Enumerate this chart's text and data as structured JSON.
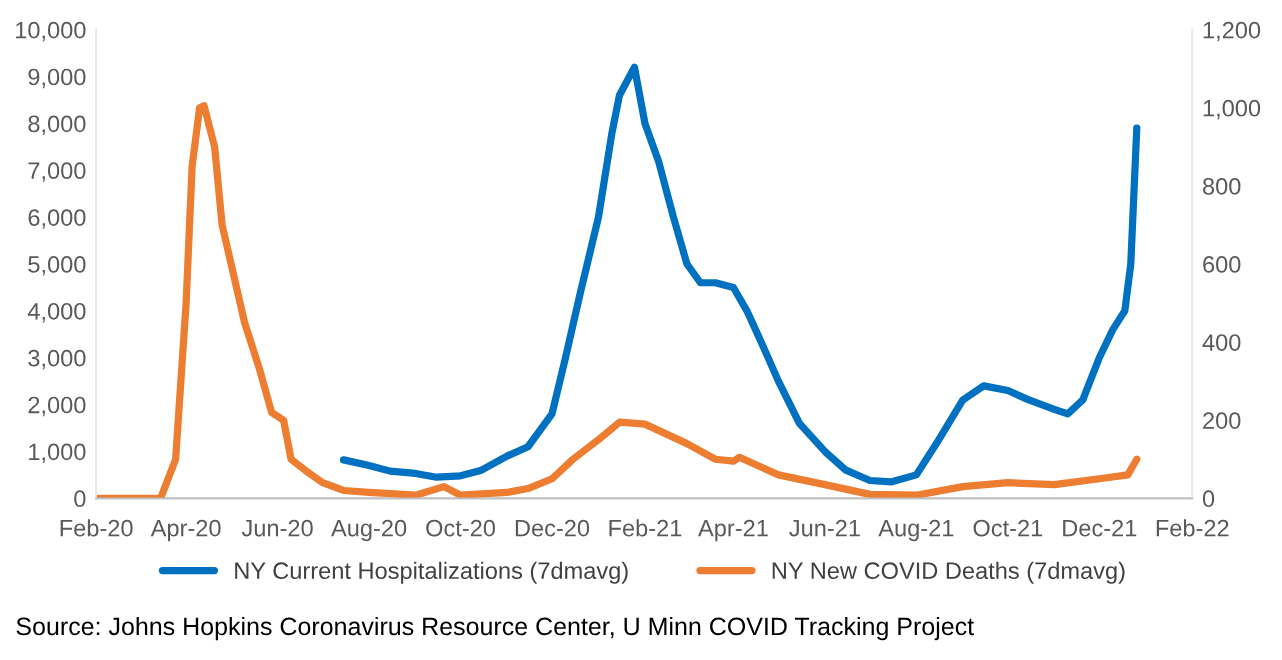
{
  "chart_data": {
    "type": "line",
    "annotations": [
      "Source: Johns Hopkins Coronavirus Resource Center, U Minn COVID Tracking Project"
    ],
    "series": [
      {
        "name": "NY Current Hospitalizations (7dmavg)",
        "color": "#0070c0",
        "axis": "y",
        "x": [
          "2020-07-15",
          "2020-08-01",
          "2020-08-15",
          "2020-09-01",
          "2020-09-15",
          "2020-10-01",
          "2020-10-15",
          "2020-11-01",
          "2020-11-15",
          "2020-12-01",
          "2020-12-10",
          "2020-12-20",
          "2021-01-01",
          "2021-01-05",
          "2021-01-10",
          "2021-01-15",
          "2021-01-20",
          "2021-01-25",
          "2021-02-01",
          "2021-02-10",
          "2021-02-20",
          "2021-03-01",
          "2021-03-10",
          "2021-03-20",
          "2021-04-01",
          "2021-04-10",
          "2021-04-20",
          "2021-05-01",
          "2021-05-15",
          "2021-06-01",
          "2021-06-15",
          "2021-07-01",
          "2021-07-15",
          "2021-08-01",
          "2021-08-15",
          "2021-09-01",
          "2021-09-15",
          "2021-10-01",
          "2021-10-15",
          "2021-11-01",
          "2021-11-10",
          "2021-11-20",
          "2021-12-01",
          "2021-12-10",
          "2021-12-18",
          "2021-12-22",
          "2021-12-26"
        ],
        "values": [
          820,
          700,
          580,
          530,
          450,
          480,
          600,
          900,
          1100,
          1800,
          3000,
          4400,
          6000,
          6800,
          7800,
          8600,
          8900,
          9200,
          8000,
          7200,
          6000,
          5000,
          4600,
          4600,
          4500,
          4000,
          3300,
          2500,
          1600,
          1000,
          600,
          380,
          350,
          500,
          1200,
          2100,
          2400,
          2300,
          2100,
          1900,
          1800,
          2100,
          3000,
          3600,
          4000,
          5000,
          7900
        ]
      },
      {
        "name": "NY New COVID Deaths (7dmavg)",
        "color": "#ed7d31",
        "axis": "y2",
        "x": [
          "2020-02-01",
          "2020-03-15",
          "2020-03-25",
          "2020-04-01",
          "2020-04-05",
          "2020-04-10",
          "2020-04-13",
          "2020-04-20",
          "2020-04-25",
          "2020-05-01",
          "2020-05-10",
          "2020-05-20",
          "2020-05-28",
          "2020-06-05",
          "2020-06-10",
          "2020-06-20",
          "2020-07-01",
          "2020-07-15",
          "2020-08-01",
          "2020-09-01",
          "2020-09-20",
          "2020-10-01",
          "2020-11-01",
          "2020-11-15",
          "2020-12-01",
          "2020-12-15",
          "2021-01-01",
          "2021-01-15",
          "2021-02-01",
          "2021-03-01",
          "2021-03-20",
          "2021-04-01",
          "2021-04-05",
          "2021-05-01",
          "2021-06-01",
          "2021-07-01",
          "2021-08-01",
          "2021-09-01",
          "2021-10-01",
          "2021-11-01",
          "2021-12-01",
          "2021-12-20",
          "2021-12-26"
        ],
        "values": [
          0,
          0,
          100,
          500,
          850,
          1000,
          1005,
          900,
          700,
          600,
          450,
          330,
          220,
          200,
          100,
          70,
          40,
          20,
          15,
          8,
          30,
          8,
          15,
          25,
          50,
          100,
          150,
          195,
          190,
          140,
          100,
          95,
          105,
          60,
          35,
          10,
          8,
          30,
          40,
          35,
          50,
          60,
          100
        ]
      }
    ],
    "xlim": [
      "2020-02-01",
      "2022-02-01"
    ],
    "xticks": [
      {
        "value": "2020-02-01",
        "label": "Feb-20"
      },
      {
        "value": "2020-04-01",
        "label": "Apr-20"
      },
      {
        "value": "2020-06-01",
        "label": "Jun-20"
      },
      {
        "value": "2020-08-01",
        "label": "Aug-20"
      },
      {
        "value": "2020-10-01",
        "label": "Oct-20"
      },
      {
        "value": "2020-12-01",
        "label": "Dec-20"
      },
      {
        "value": "2021-02-01",
        "label": "Feb-21"
      },
      {
        "value": "2021-04-01",
        "label": "Apr-21"
      },
      {
        "value": "2021-06-01",
        "label": "Jun-21"
      },
      {
        "value": "2021-08-01",
        "label": "Aug-21"
      },
      {
        "value": "2021-10-01",
        "label": "Oct-21"
      },
      {
        "value": "2021-12-01",
        "label": "Dec-21"
      },
      {
        "value": "2022-02-01",
        "label": "Feb-22"
      }
    ],
    "ylim": [
      0,
      10000
    ],
    "yticks": [
      {
        "value": 0,
        "label": "0"
      },
      {
        "value": 1000,
        "label": "1,000"
      },
      {
        "value": 2000,
        "label": "2,000"
      },
      {
        "value": 3000,
        "label": "3,000"
      },
      {
        "value": 4000,
        "label": "4,000"
      },
      {
        "value": 5000,
        "label": "5,000"
      },
      {
        "value": 6000,
        "label": "6,000"
      },
      {
        "value": 7000,
        "label": "7,000"
      },
      {
        "value": 8000,
        "label": "8,000"
      },
      {
        "value": 9000,
        "label": "9,000"
      },
      {
        "value": 10000,
        "label": "10,000"
      }
    ],
    "y2lim": [
      0,
      1200
    ],
    "y2ticks": [
      0,
      200,
      400,
      600,
      800,
      {
        "value": 1000,
        "label": "1,000"
      },
      {
        "value": 1200,
        "label": "1,200"
      }
    ],
    "legend": "bottom",
    "grid": false,
    "marker": "none",
    "line_style": "solid"
  }
}
